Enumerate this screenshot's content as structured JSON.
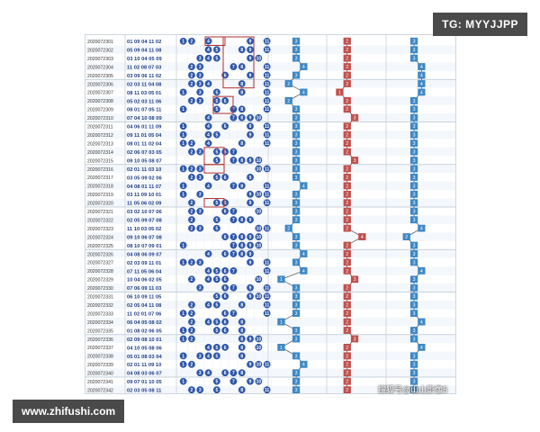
{
  "watermark_tl": "TG: MYYJJPP",
  "watermark_bl": "www.zhifushi.com",
  "watermark_chart": "搜狐号@山山影像5",
  "colors": {
    "ball_blue": "#2f57a8",
    "box_red": "#b03030",
    "blue_cell": "#3f88c5",
    "red_cell": "#c0504d",
    "issue_text": "#333333",
    "draw_text": "#1e3c8a"
  },
  "rows": [
    {
      "issue": "2020072301",
      "draw": "01 09 04 11 02"
    },
    {
      "issue": "2020072302",
      "draw": "05 09 04 11 08"
    },
    {
      "issue": "2020072303",
      "draw": "03 10 04 05 09"
    },
    {
      "issue": "2020072304",
      "draw": "11 02 08 07 03"
    },
    {
      "issue": "2020072305",
      "draw": "03 09 06 11 02"
    },
    {
      "issue": "2020072306",
      "draw": "02 03 11 04 08"
    },
    {
      "issue": "2020072307",
      "draw": "08 11 03 05 01"
    },
    {
      "issue": "2020072308",
      "draw": "05 02 03 11 06"
    },
    {
      "issue": "2020072309",
      "draw": "08 01 07 05 11"
    },
    {
      "issue": "2020072310",
      "draw": "07 04 10 08 09"
    },
    {
      "issue": "2020072311",
      "draw": "04 06 01 11 09"
    },
    {
      "issue": "2020072312",
      "draw": "09 11 01 05 04"
    },
    {
      "issue": "2020072313",
      "draw": "08 01 11 02 04"
    },
    {
      "issue": "2020072314",
      "draw": "02 06 07 03 05"
    },
    {
      "issue": "2020072315",
      "draw": "09 10 05 08 07"
    },
    {
      "issue": "2020072316",
      "draw": "02 01 11 03 10"
    },
    {
      "issue": "2020072317",
      "draw": "03 05 09 02 06"
    },
    {
      "issue": "2020072318",
      "draw": "04 08 01 11 07"
    },
    {
      "issue": "2020072319",
      "draw": "03 11 09 10 01"
    },
    {
      "issue": "2020072320",
      "draw": "11 05 06 02 09"
    },
    {
      "issue": "2020072321",
      "draw": "03 02 10 07 06"
    },
    {
      "issue": "2020072322",
      "draw": "02 05 09 07 08"
    },
    {
      "issue": "2020072323",
      "draw": "11 10 03 05 02"
    },
    {
      "issue": "2020072324",
      "draw": "09 10 06 07 08"
    },
    {
      "issue": "2020072325",
      "draw": "08 10 07 09 01"
    },
    {
      "issue": "2020072326",
      "draw": "04 08 06 09 07"
    },
    {
      "issue": "2020072327",
      "draw": "02 03 09 11 01"
    },
    {
      "issue": "2020072328",
      "draw": "07 11 05 06 04"
    },
    {
      "issue": "2020072329",
      "draw": "10 04 06 02 05"
    },
    {
      "issue": "2020072330",
      "draw": "07 06 09 11 03"
    },
    {
      "issue": "2020072331",
      "draw": "06 10 09 11 05"
    },
    {
      "issue": "2020072332",
      "draw": "02 05 04 11 08"
    },
    {
      "issue": "2020072333",
      "draw": "11 02 01 07 06"
    },
    {
      "issue": "2020072334",
      "draw": "06 04 05 08 02"
    },
    {
      "issue": "2020072335",
      "draw": "01 08 02 06 05"
    },
    {
      "issue": "2020072336",
      "draw": "02 09 08 10 01"
    },
    {
      "issue": "2020072337",
      "draw": "04 10 05 08 06"
    },
    {
      "issue": "2020072338",
      "draw": "05 01 08 03 04"
    },
    {
      "issue": "2020072339",
      "draw": "02 01 11 09 10"
    },
    {
      "issue": "2020072340",
      "draw": "04 08 03 06 07"
    },
    {
      "issue": "2020072341",
      "draw": "09 07 01 10 05"
    },
    {
      "issue": "2020072342",
      "draw": "02 03 05 08 11"
    }
  ],
  "zone_a": [
    3,
    3,
    3,
    4,
    3,
    2,
    4,
    2,
    3,
    3,
    3,
    3,
    3,
    3,
    3,
    3,
    3,
    4,
    3,
    3,
    3,
    3,
    2,
    3,
    3,
    4,
    3,
    4,
    1,
    3,
    3,
    3,
    3,
    1,
    3,
    3,
    1,
    3,
    4,
    3,
    3,
    3
  ],
  "zone_b": [
    2,
    2,
    2,
    2,
    2,
    2,
    1,
    2,
    2,
    3,
    2,
    2,
    2,
    2,
    3,
    2,
    2,
    2,
    2,
    2,
    2,
    2,
    2,
    4,
    2,
    2,
    2,
    2,
    3,
    2,
    2,
    2,
    2,
    2,
    2,
    3,
    2,
    2,
    2,
    2,
    2,
    2
  ],
  "zone_c": [
    3,
    3,
    3,
    4,
    4,
    4,
    4,
    3,
    3,
    3,
    3,
    3,
    3,
    3,
    3,
    3,
    3,
    3,
    3,
    3,
    3,
    3,
    4,
    2,
    3,
    3,
    3,
    4,
    3,
    3,
    3,
    3,
    3,
    4,
    3,
    3,
    4,
    3,
    3,
    3,
    3,
    3
  ]
}
